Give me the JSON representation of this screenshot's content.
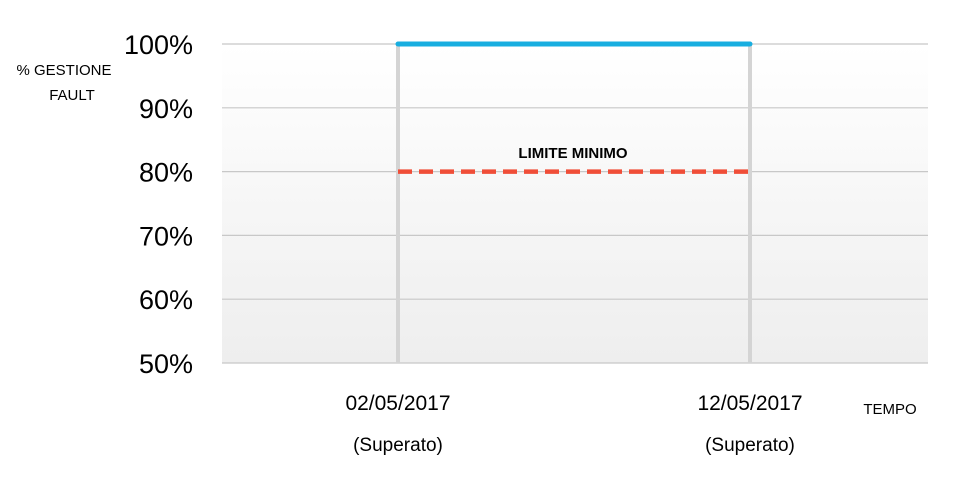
{
  "chart_data": {
    "type": "line",
    "ylabel": [
      "% GESTIONE",
      "FAULT"
    ],
    "xlabel": "TEMPO",
    "ylim": [
      50,
      100
    ],
    "yticks": [
      "100%",
      "90%",
      "80%",
      "70%",
      "60%",
      "50%"
    ],
    "categories": [
      "02/05/2017",
      "12/05/2017"
    ],
    "category_sublabels": [
      "(Superato)",
      "(Superato)"
    ],
    "series": [
      {
        "values": [
          100,
          100
        ],
        "color": "#18aee0",
        "style": "solid"
      },
      {
        "name": "LIMITE MINIMO",
        "values": [
          80,
          80
        ],
        "color": "#f04e38",
        "style": "dashed"
      }
    ],
    "annotations": [
      {
        "text": "LIMITE MINIMO"
      }
    ],
    "grid": true
  }
}
